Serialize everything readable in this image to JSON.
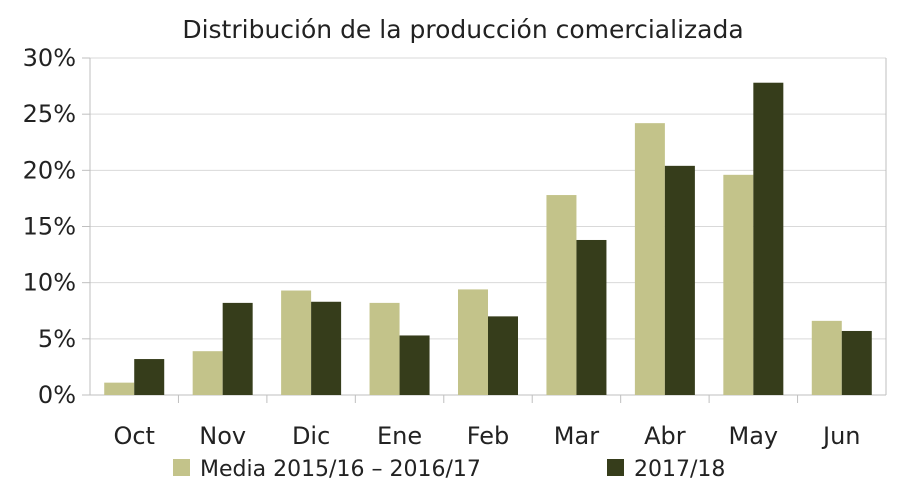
{
  "chart_data": {
    "type": "bar",
    "title": "Distribución de la producción comercializada",
    "categories": [
      "Oct",
      "Nov",
      "Dic",
      "Ene",
      "Feb",
      "Mar",
      "Abr",
      "May",
      "Jun"
    ],
    "series": [
      {
        "name": "Media 2015/16 – 2016/17",
        "color": "#c3c38a",
        "values": [
          1.1,
          3.9,
          9.3,
          8.2,
          9.4,
          17.8,
          24.2,
          19.6,
          6.6
        ]
      },
      {
        "name": "2017/18",
        "color": "#363d1b",
        "values": [
          3.2,
          8.2,
          8.3,
          5.3,
          7.0,
          13.8,
          20.4,
          27.8,
          5.7
        ]
      }
    ],
    "yticks": [
      "0%",
      "5%",
      "10%",
      "15%",
      "20%",
      "25%",
      "30%"
    ],
    "ylim": [
      0,
      30
    ],
    "grid": true,
    "legend_position": "bottom"
  }
}
